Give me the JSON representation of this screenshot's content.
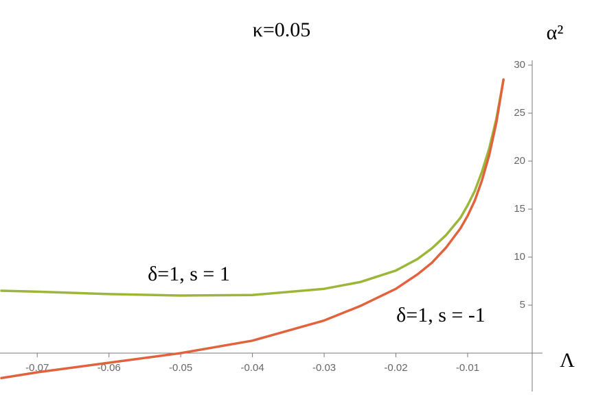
{
  "chart_data": {
    "type": "line",
    "title": "κ=0.05",
    "x_label": "Λ",
    "y_label": "α²",
    "x": [
      -0.075,
      -0.07,
      -0.06,
      -0.05,
      -0.04,
      -0.03,
      -0.025,
      -0.02,
      -0.017,
      -0.015,
      -0.013,
      -0.011,
      -0.01,
      -0.009,
      -0.008,
      -0.007,
      -0.006,
      -0.005
    ],
    "series": [
      {
        "color": "#9cb63a",
        "values": [
          6.5,
          6.4,
          6.15,
          6.0,
          6.05,
          6.7,
          7.4,
          8.6,
          9.8,
          10.9,
          12.3,
          14.1,
          15.4,
          16.9,
          18.9,
          21.3,
          24.4,
          28.5
        ]
      },
      {
        "color": "#e0633e",
        "values": [
          -2.6,
          -2.0,
          -1.0,
          0,
          1.3,
          3.4,
          4.9,
          6.7,
          8.2,
          9.4,
          11.0,
          13.0,
          14.3,
          15.9,
          18.0,
          20.6,
          24.0,
          28.5
        ]
      }
    ],
    "annotations": [
      "δ=1, s = 1",
      "δ=1, s = -1"
    ],
    "xlim": [
      -0.075,
      -0.001
    ],
    "ylim": [
      -4,
      30.5
    ],
    "xticks": [
      -0.07,
      -0.06,
      -0.05,
      -0.04,
      -0.03,
      -0.02,
      -0.01
    ],
    "yticks": [
      5,
      10,
      15,
      20,
      25,
      30
    ],
    "grid": false
  }
}
